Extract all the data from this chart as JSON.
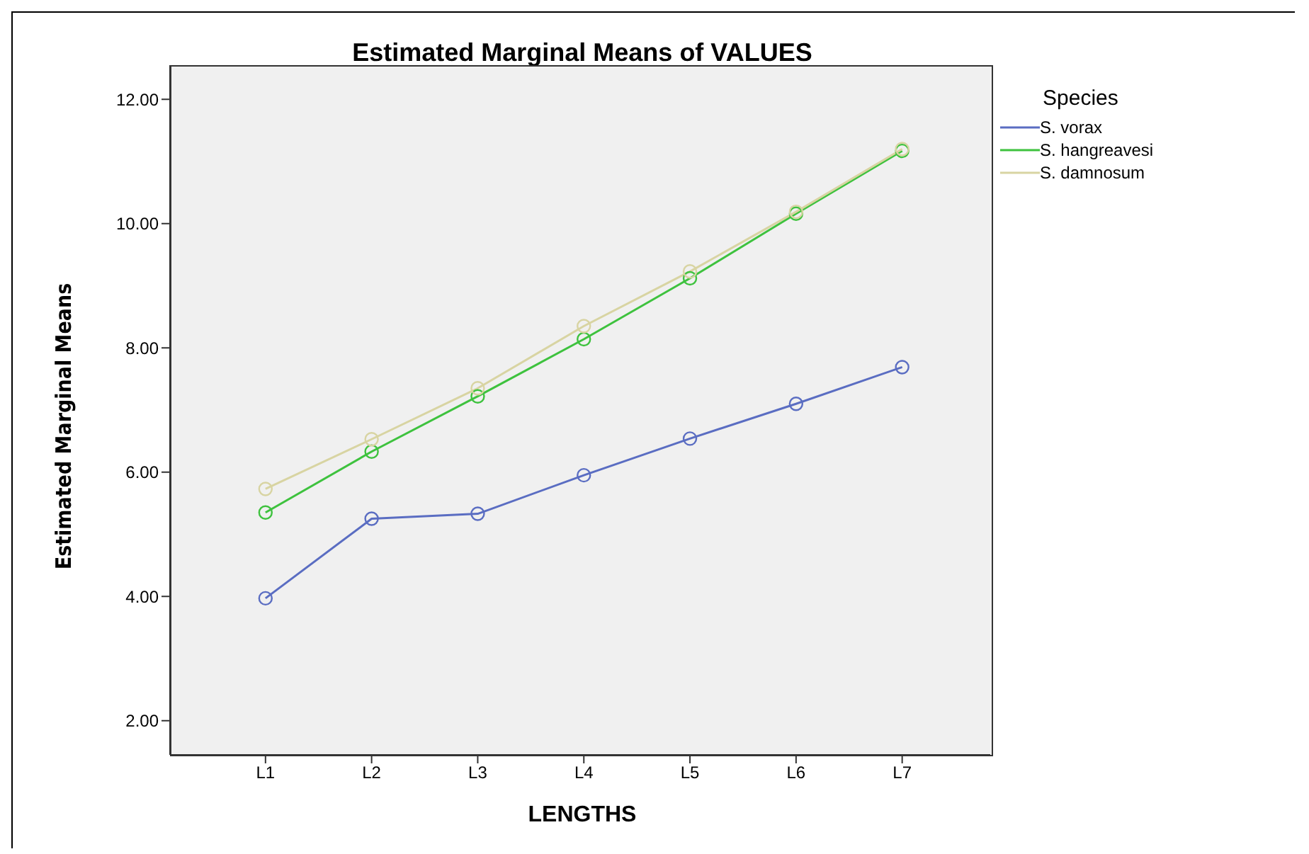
{
  "chart_data": {
    "type": "line",
    "title": "Estimated Marginal Means of VALUES",
    "xlabel": "LENGTHS",
    "ylabel": "Estimated Marginal Means",
    "legend_title": "Species",
    "categories": [
      "L1",
      "L2",
      "L3",
      "L4",
      "L5",
      "L6",
      "L7"
    ],
    "series": [
      {
        "name": "S. vorax",
        "color": "#5a6dc2",
        "values": [
          3.97,
          5.25,
          5.33,
          5.95,
          6.54,
          7.1,
          7.69
        ]
      },
      {
        "name": "S. hangreavesi",
        "color": "#3ec23e",
        "values": [
          5.35,
          6.33,
          7.22,
          8.14,
          9.12,
          10.16,
          11.17
        ]
      },
      {
        "name": "S. damnosum",
        "color": "#d8d4a2",
        "values": [
          5.73,
          6.53,
          7.35,
          8.35,
          9.23,
          10.19,
          11.2
        ]
      }
    ],
    "ylim": [
      1.45,
      12.55
    ],
    "yticks": [
      {
        "value": 2,
        "label": "2.00"
      },
      {
        "value": 4,
        "label": "4.00"
      },
      {
        "value": 6,
        "label": "6.00"
      },
      {
        "value": 8,
        "label": "8.00"
      },
      {
        "value": 10,
        "label": "10.00"
      },
      {
        "value": 12,
        "label": "12.00"
      }
    ],
    "grid": false,
    "legend": "right",
    "marker": "circle",
    "line_style": "solid"
  }
}
